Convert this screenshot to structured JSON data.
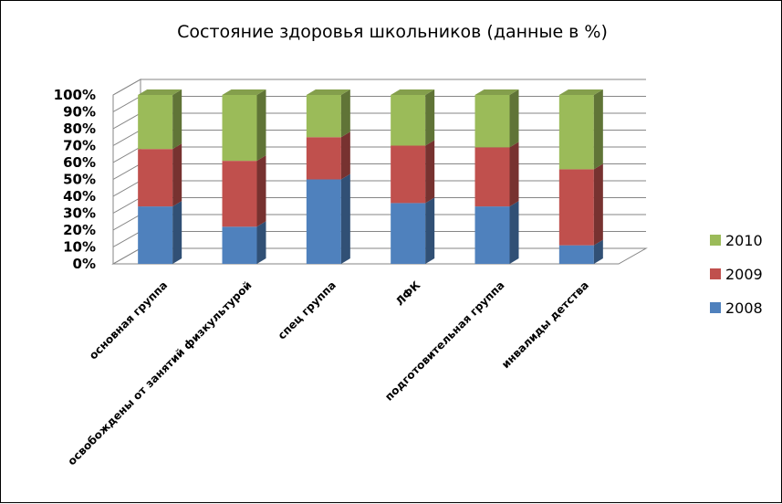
{
  "chart_data": {
    "type": "bar",
    "stacked": true,
    "percent": true,
    "three_d": true,
    "title": "Состояние здоровья школьников (данные в %)",
    "xlabel": "",
    "ylabel": "",
    "ylim": [
      0,
      100
    ],
    "y_ticks": [
      "0%",
      "10%",
      "20%",
      "30%",
      "40%",
      "50%",
      "60%",
      "70%",
      "80%",
      "90%",
      "100%"
    ],
    "grid": true,
    "legend_position": "right",
    "categories": [
      "основная группа",
      "освобождены от занятий физкультурой",
      "спец группа",
      "ЛФК",
      "подготовительная группа",
      "инвалиды детства"
    ],
    "series": [
      {
        "name": "2008",
        "color": "#4F81BD",
        "values": [
          34,
          22,
          50,
          36,
          34,
          11
        ]
      },
      {
        "name": "2009",
        "color": "#C0504D",
        "values": [
          34,
          39,
          25,
          34,
          35,
          45
        ]
      },
      {
        "name": "2010",
        "color": "#9BBB59",
        "values": [
          32,
          39,
          25,
          30,
          31,
          44
        ]
      }
    ]
  }
}
